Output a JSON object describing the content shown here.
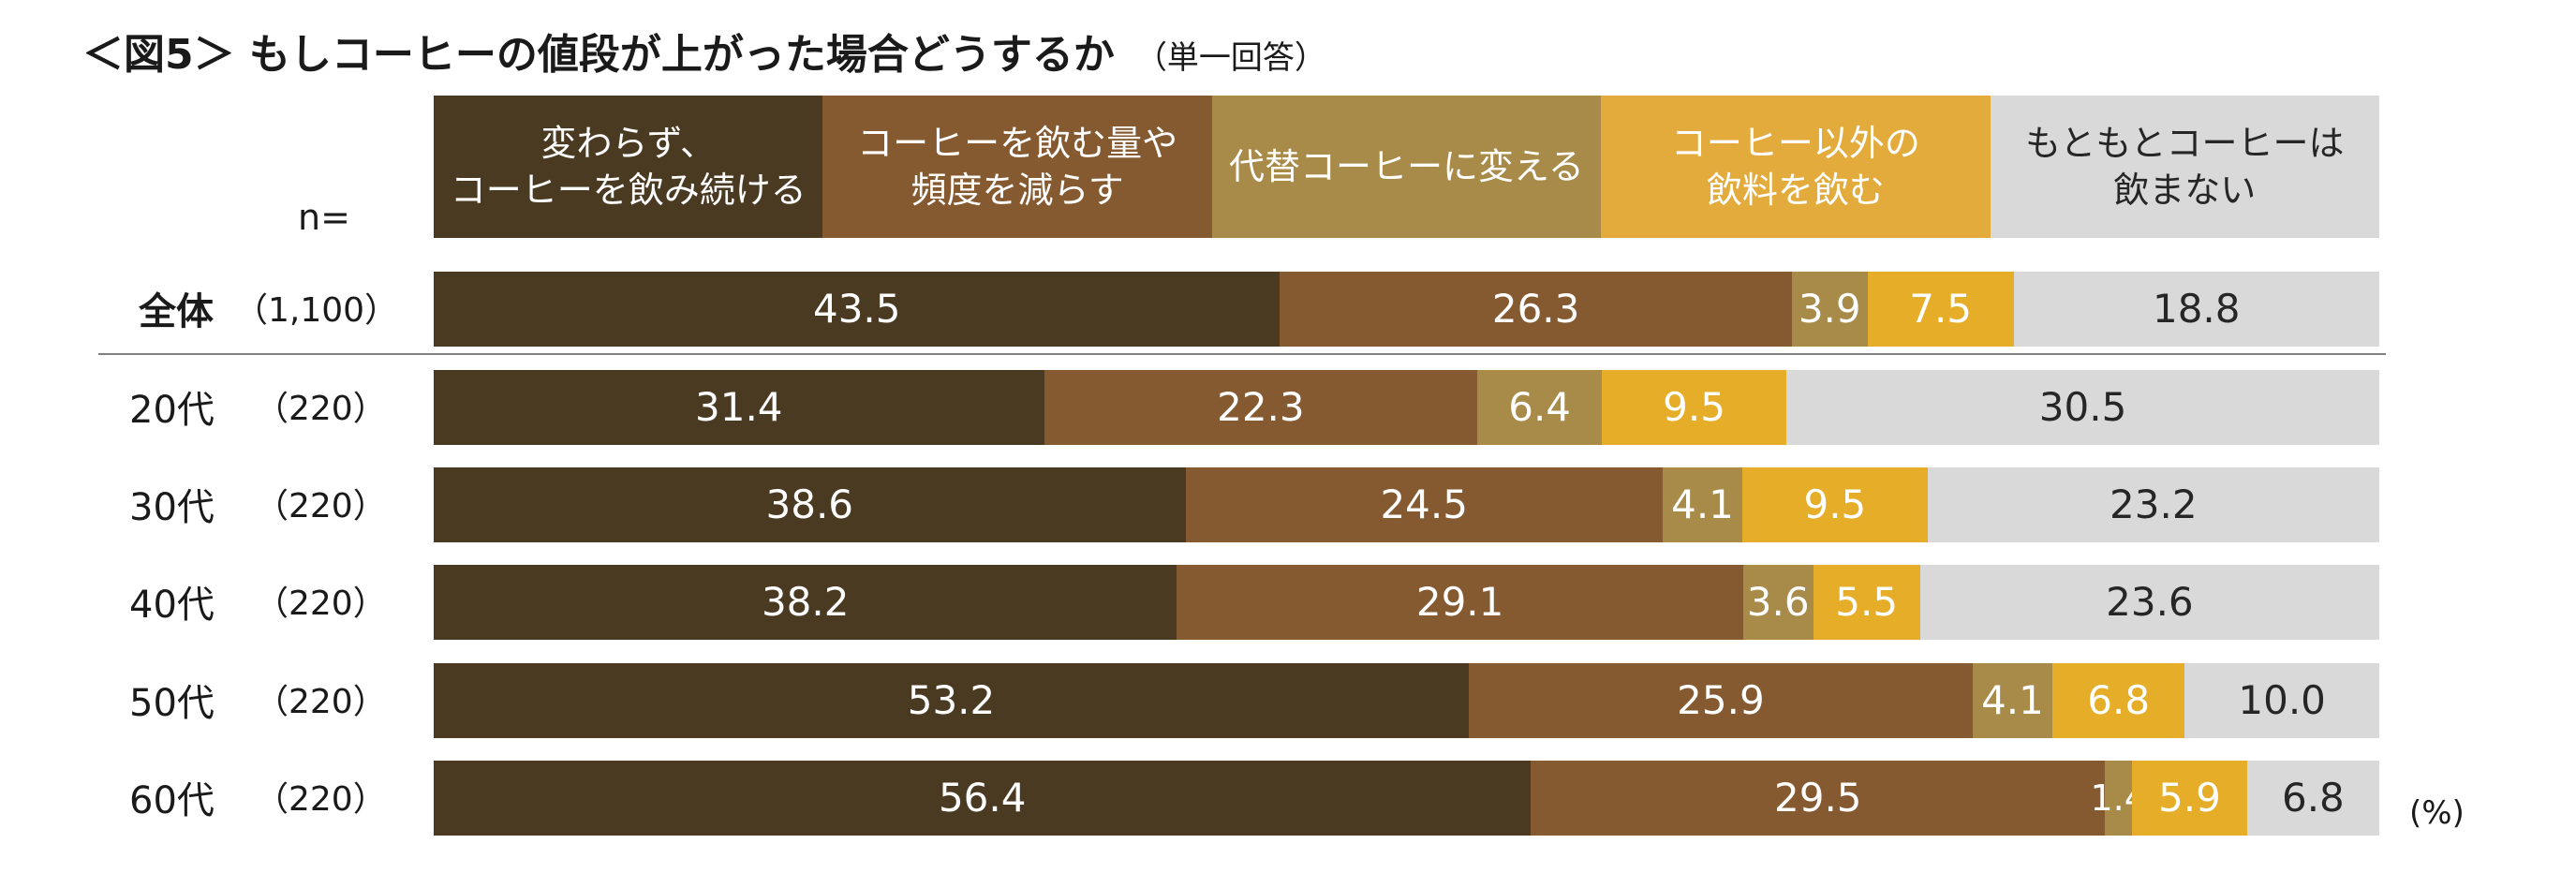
{
  "title": "＜図5＞ もしコーヒーの値段が上がった場合どうするか",
  "subtitle": "（単一回答）",
  "n_label": "n=",
  "unit_label": "(%)",
  "chart_data": {
    "type": "bar",
    "stacked": true,
    "orientation": "horizontal",
    "percent": true,
    "xlim": [
      0,
      100
    ],
    "series": [
      {
        "name": "変わらず、\nコーヒーを飲み続ける",
        "color": "#4a3a22",
        "text_color": "#ffffff"
      },
      {
        "name": "コーヒーを飲む量や\n頻度を減らす",
        "color": "#855a31",
        "text_color": "#ffffff"
      },
      {
        "name": "代替コーヒーに変える",
        "color": "#a88a49",
        "text_color": "#ffffff"
      },
      {
        "name": "コーヒー以外の\n飲料を飲む",
        "color": "#e2ab3b",
        "text_color": "#ffffff"
      },
      {
        "name": "もともとコーヒーは\n飲まない",
        "color": "#d9d9d9",
        "text_color": "#262626"
      }
    ],
    "header_colors": [
      "#4a3a22",
      "#855a31",
      "#a88a49",
      "#e2ab3b",
      "#d9d9d9"
    ],
    "bar_colors": [
      "#4a3a22",
      "#855a31",
      "#a88a49",
      "#e6ad28",
      "#d9d9d9"
    ],
    "rows": [
      {
        "label": "全体",
        "n": "（1,100）",
        "values": [
          "43.5",
          "26.3",
          "3.9",
          "7.5",
          "18.8"
        ]
      },
      {
        "label": "20代",
        "n": "（220）",
        "values": [
          "31.4",
          "22.3",
          "6.4",
          "9.5",
          "30.5"
        ]
      },
      {
        "label": "30代",
        "n": "（220）",
        "values": [
          "38.6",
          "24.5",
          "4.1",
          "9.5",
          "23.2"
        ]
      },
      {
        "label": "40代",
        "n": "（220）",
        "values": [
          "38.2",
          "29.1",
          "3.6",
          "5.5",
          "23.6"
        ]
      },
      {
        "label": "50代",
        "n": "（220）",
        "values": [
          "53.2",
          "25.9",
          "4.1",
          "6.8",
          "10.0"
        ]
      },
      {
        "label": "60代",
        "n": "（220）",
        "values": [
          "56.4",
          "29.5",
          "1.4",
          "5.9",
          "6.8"
        ]
      }
    ]
  }
}
